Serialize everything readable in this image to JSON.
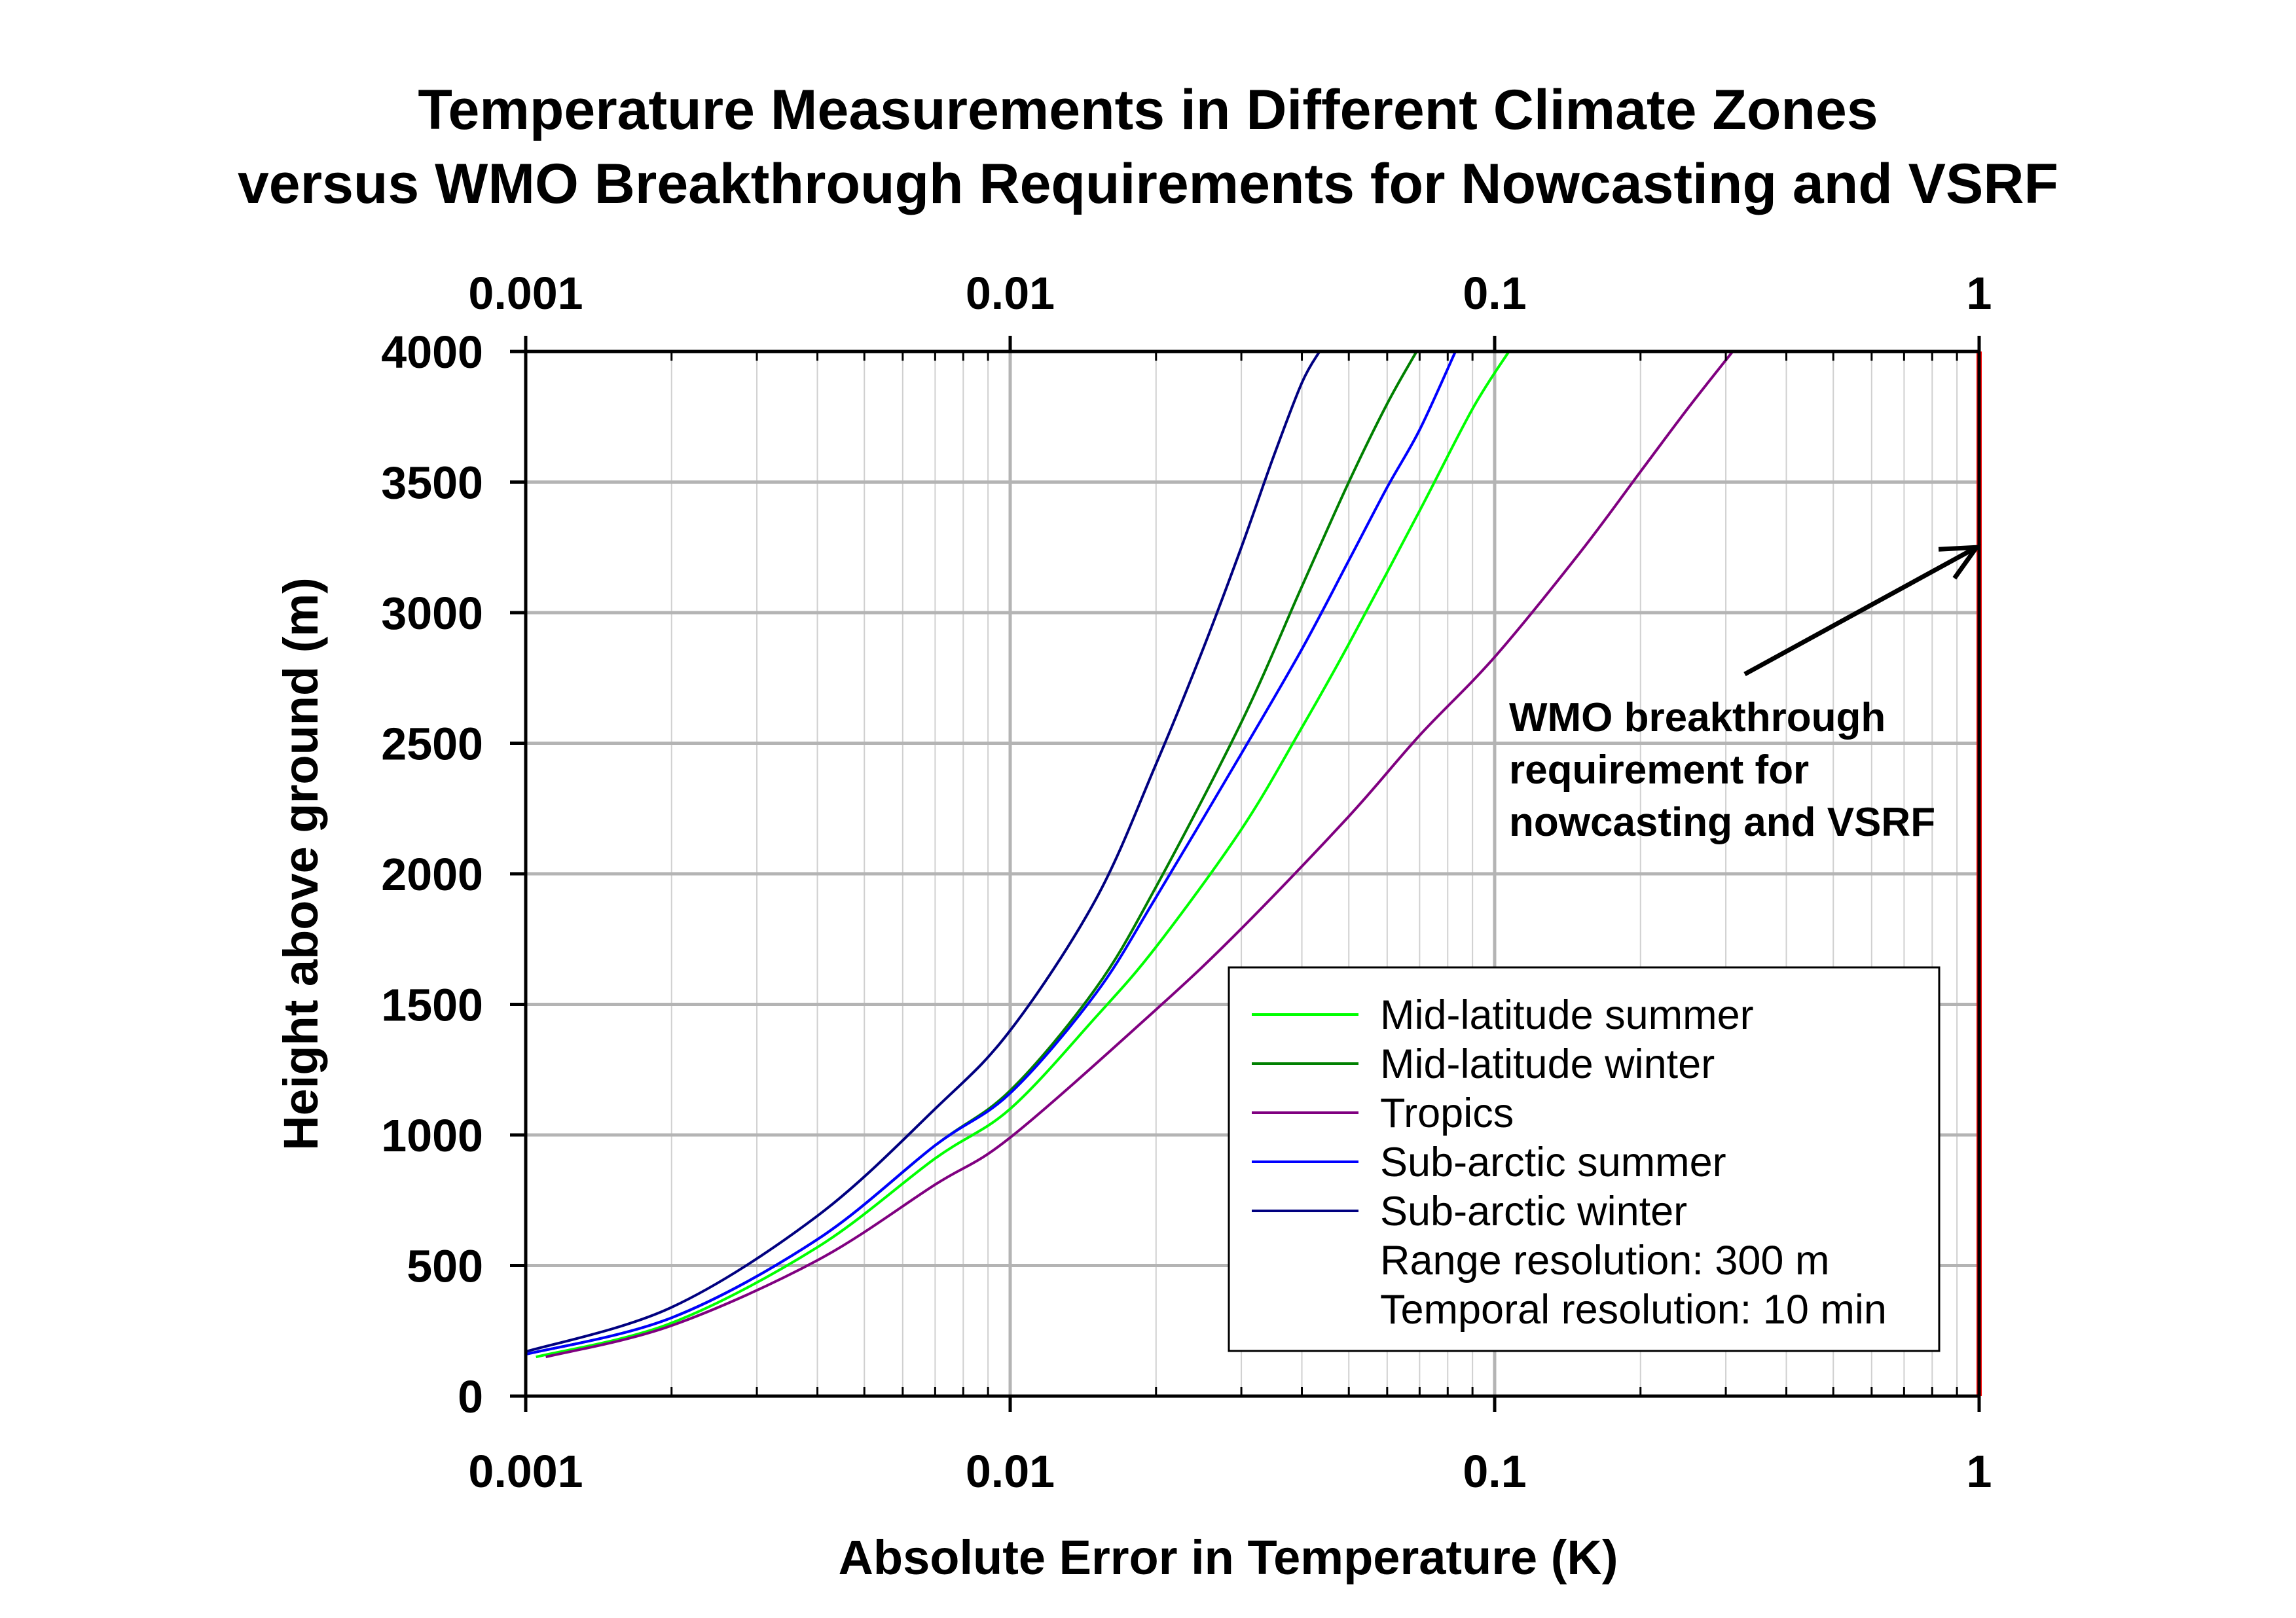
{
  "chart_data": {
    "type": "line",
    "title_lines": [
      "Temperature Measurements in Different Climate Zones",
      "versus WMO Breakthrough Requirements for Nowcasting and VSRF"
    ],
    "xlabel": "Absolute Error in Temperature (K)",
    "ylabel": "Height above ground (m)",
    "x_scale": "log",
    "xlim": [
      0.001,
      1
    ],
    "ylim": [
      0,
      4000
    ],
    "x_ticks": [
      "0.001",
      "0.01",
      "0.1",
      "1"
    ],
    "y_ticks": [
      "0",
      "500",
      "1000",
      "1500",
      "2000",
      "2500",
      "3000",
      "3500",
      "4000"
    ],
    "grid": true,
    "legend_position": "bottom-right",
    "series": [
      {
        "name": "Mid-latitude summer",
        "color": "#00ff00",
        "x": [
          0.00105,
          0.002,
          0.004,
          0.007,
          0.01,
          0.015,
          0.02,
          0.03,
          0.04,
          0.05,
          0.07,
          0.09,
          0.107
        ],
        "y": [
          150,
          280,
          570,
          910,
          1100,
          1450,
          1720,
          2170,
          2560,
          2880,
          3390,
          3780,
          4000
        ]
      },
      {
        "name": "Mid-latitude winter",
        "color": "#008000",
        "x": [
          0.001,
          0.002,
          0.004,
          0.007,
          0.01,
          0.015,
          0.02,
          0.03,
          0.04,
          0.05,
          0.06,
          0.069
        ],
        "y": [
          160,
          300,
          600,
          960,
          1170,
          1560,
          1950,
          2580,
          3100,
          3500,
          3800,
          4000
        ]
      },
      {
        "name": "Tropics",
        "color": "#800080",
        "x": [
          0.0011,
          0.002,
          0.004,
          0.007,
          0.01,
          0.02,
          0.03,
          0.05,
          0.07,
          0.1,
          0.15,
          0.2,
          0.25,
          0.31
        ],
        "y": [
          150,
          270,
          520,
          810,
          990,
          1480,
          1790,
          2220,
          2530,
          2830,
          3230,
          3540,
          3780,
          4000
        ]
      },
      {
        "name": "Sub-arctic summer",
        "color": "#0000ff",
        "x": [
          0.001,
          0.002,
          0.004,
          0.007,
          0.01,
          0.015,
          0.02,
          0.03,
          0.04,
          0.05,
          0.06,
          0.07,
          0.083
        ],
        "y": [
          160,
          300,
          600,
          960,
          1160,
          1540,
          1910,
          2460,
          2860,
          3200,
          3480,
          3700,
          4000
        ]
      },
      {
        "name": "Sub-arctic winter",
        "color": "#000080",
        "x": [
          0.001,
          0.002,
          0.004,
          0.007,
          0.01,
          0.015,
          0.02,
          0.025,
          0.03,
          0.035,
          0.04,
          0.0435
        ],
        "y": [
          170,
          340,
          690,
          1100,
          1400,
          1900,
          2420,
          2860,
          3250,
          3600,
          3880,
          4000
        ]
      },
      {
        "name": "",
        "color": "#ff0000",
        "x": [
          1,
          1
        ],
        "y": [
          0,
          4000
        ]
      }
    ],
    "legend_notes": [
      "Range resolution: 300 m",
      "Temporal resolution: 10 min"
    ],
    "annotation": {
      "lines": [
        "WMO breakthrough",
        "requirement for",
        "nowcasting and VSRF"
      ],
      "arrow_target": {
        "x": 1,
        "y": 3250
      }
    }
  }
}
